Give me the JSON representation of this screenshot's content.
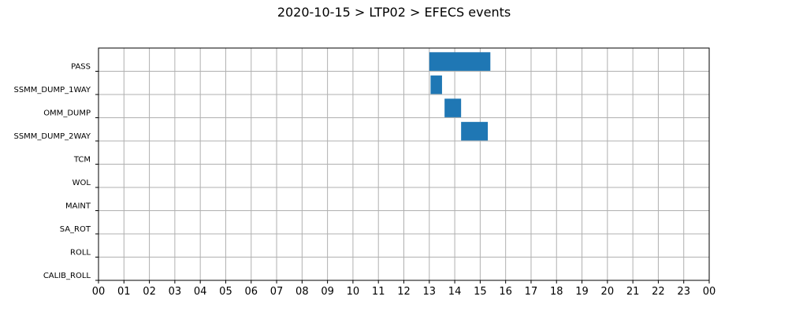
{
  "chart_data": {
    "type": "gantt",
    "title": "2020-10-15 > LTP02 > EFECS events",
    "xlabel": "",
    "ylabel": "",
    "x_unit": "hour",
    "xlim": [
      0,
      24
    ],
    "x_tick_labels": [
      "00",
      "01",
      "02",
      "03",
      "04",
      "05",
      "06",
      "07",
      "08",
      "09",
      "10",
      "11",
      "12",
      "13",
      "14",
      "15",
      "16",
      "17",
      "18",
      "19",
      "20",
      "21",
      "22",
      "23",
      "00"
    ],
    "grid": true,
    "bar_color": "#1f77b4",
    "grid_color": "#b0b0b0",
    "categories": [
      "PASS",
      "SSMM_DUMP_1WAY",
      "OMM_DUMP",
      "SSMM_DUMP_2WAY",
      "TCM",
      "WOL",
      "MAINT",
      "SA_ROT",
      "ROLL",
      "CALIB_ROLL"
    ],
    "events": [
      {
        "category": "PASS",
        "start": 13.0,
        "end": 15.4
      },
      {
        "category": "SSMM_DUMP_1WAY",
        "start": 13.05,
        "end": 13.5
      },
      {
        "category": "OMM_DUMP",
        "start": 13.6,
        "end": 14.25
      },
      {
        "category": "SSMM_DUMP_2WAY",
        "start": 14.25,
        "end": 15.3
      }
    ]
  }
}
